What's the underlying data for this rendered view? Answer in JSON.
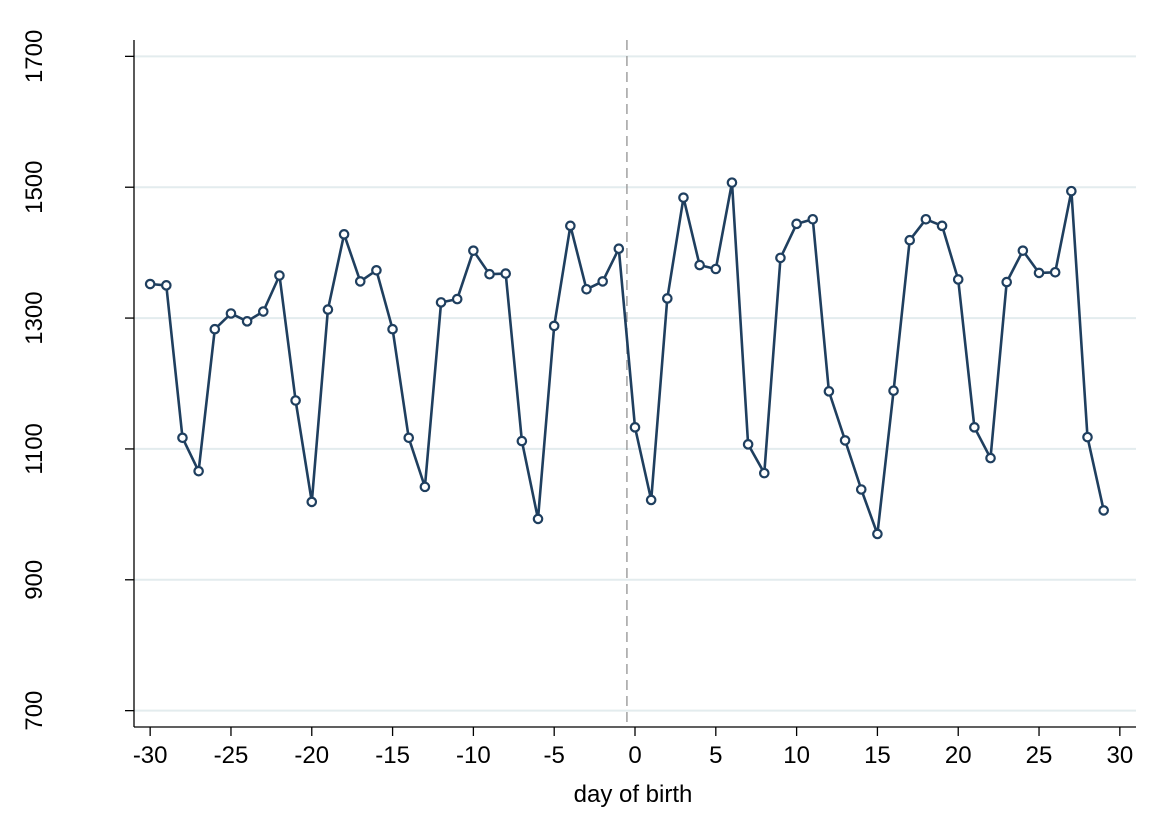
{
  "chart_data": {
    "type": "line",
    "title": "",
    "xlabel": "day of birth",
    "ylabel": "",
    "xlim": [
      -31,
      31
    ],
    "ylim": [
      675,
      1725
    ],
    "xticks": [
      -30,
      -25,
      -20,
      -15,
      -10,
      -5,
      0,
      5,
      10,
      15,
      20,
      25,
      30
    ],
    "xtick_labels": [
      "-30",
      "-25",
      "-20",
      "-15",
      "-10",
      "-5",
      "0",
      "5",
      "10",
      "15",
      "20",
      "25",
      "30"
    ],
    "yticks": [
      700,
      900,
      1100,
      1300,
      1500,
      1700
    ],
    "ytick_labels": [
      "700",
      "900",
      "1100",
      "1300",
      "1500",
      "1700"
    ],
    "grid": "horizontal",
    "reference_line": {
      "x": -0.5,
      "style": "dashed"
    },
    "series": [
      {
        "color": "#1f3f5f",
        "marker": "hollow-circle",
        "x": [
          -30,
          -29,
          -28,
          -27,
          -26,
          -25,
          -24,
          -23,
          -22,
          -21,
          -20,
          -19,
          -18,
          -17,
          -16,
          -15,
          -14,
          -13,
          -12,
          -11,
          -10,
          -9,
          -8,
          -7,
          -6,
          -5,
          -4,
          -3,
          -2,
          -1,
          0,
          1,
          2,
          3,
          4,
          5,
          6,
          7,
          8,
          9,
          10,
          11,
          12,
          13,
          14,
          15,
          16,
          17,
          18,
          19,
          20,
          21,
          22,
          23,
          24,
          25,
          26,
          27,
          28,
          29
        ],
        "y": [
          1352,
          1350,
          1117,
          1066,
          1283,
          1307,
          1295,
          1310,
          1365,
          1174,
          1019,
          1313,
          1428,
          1356,
          1373,
          1283,
          1117,
          1042,
          1324,
          1329,
          1403,
          1367,
          1368,
          1112,
          993,
          1288,
          1441,
          1344,
          1356,
          1406,
          1133,
          1022,
          1330,
          1484,
          1381,
          1375,
          1507,
          1107,
          1063,
          1392,
          1444,
          1451,
          1188,
          1113,
          1038,
          970,
          1189,
          1419,
          1451,
          1441,
          1359,
          1133,
          1086,
          1355,
          1403,
          1369,
          1370,
          1494,
          1118,
          1006
        ]
      }
    ]
  }
}
